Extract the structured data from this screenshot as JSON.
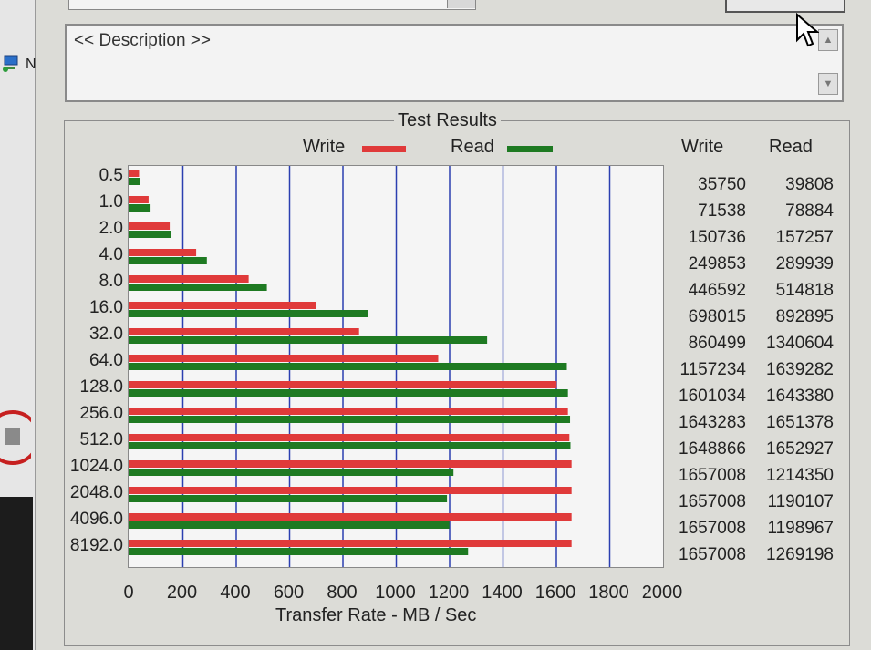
{
  "description": {
    "text": "<< Description >>"
  },
  "left_strip": {
    "letter": "N"
  },
  "results": {
    "group_title": "Test Results",
    "write_label": "Write",
    "read_label": "Read",
    "col_write": "Write",
    "col_read": "Read",
    "write_color": "#e03a3a",
    "read_color": "#1e7a22"
  },
  "chart_data": {
    "type": "bar",
    "orientation": "horizontal",
    "title": "Test Results",
    "xlabel": "Transfer Rate - MB / Sec",
    "xlim": [
      0,
      2000
    ],
    "xticks": [
      "0",
      "200",
      "400",
      "600",
      "800",
      "1000",
      "1200",
      "1400",
      "1600",
      "1800",
      "2000"
    ],
    "grid": true,
    "legend": "top",
    "categories": [
      "0.5",
      "1.0",
      "2.0",
      "4.0",
      "8.0",
      "16.0",
      "32.0",
      "64.0",
      "128.0",
      "256.0",
      "512.0",
      "1024.0",
      "2048.0",
      "4096.0",
      "8192.0"
    ],
    "series": [
      {
        "name": "Write",
        "values": [
          35750,
          71538,
          150736,
          249853,
          446592,
          698015,
          860499,
          1157234,
          1601034,
          1643283,
          1648866,
          1657008,
          1657008,
          1657008,
          1657008
        ]
      },
      {
        "name": "Read",
        "values": [
          39808,
          78884,
          157257,
          289939,
          514818,
          892895,
          1340604,
          1639282,
          1643380,
          1651378,
          1652927,
          1214350,
          1190107,
          1198967,
          1269198
        ]
      }
    ]
  }
}
